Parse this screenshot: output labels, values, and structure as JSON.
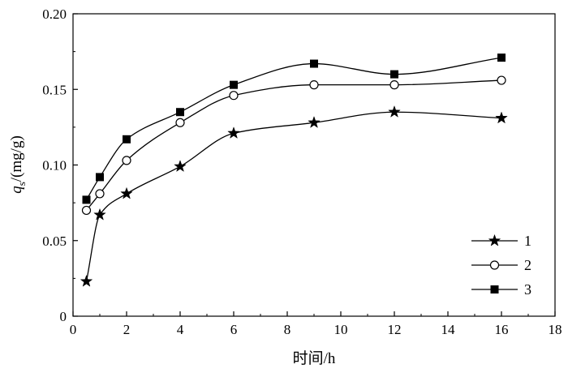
{
  "chart_data": {
    "type": "line",
    "title": "",
    "xlabel": "时间/h",
    "ylabel": {
      "symbol": "q",
      "subscript": "s",
      "unit": "/(mg/g)"
    },
    "xlim": [
      0,
      18
    ],
    "ylim": [
      0,
      0.2
    ],
    "xticks": [
      "0",
      "2",
      "4",
      "6",
      "8",
      "10",
      "12",
      "14",
      "16",
      "18"
    ],
    "yticks": [
      "0",
      "0.05",
      "0.10",
      "0.15",
      "0.20"
    ],
    "grid": false,
    "legend_position": "bottom-right",
    "x": [
      0.5,
      1,
      2,
      4,
      6,
      9,
      12,
      16
    ],
    "series": [
      {
        "name": "1",
        "marker": "star",
        "values": [
          0.023,
          0.067,
          0.081,
          0.099,
          0.121,
          0.128,
          0.135,
          0.131
        ]
      },
      {
        "name": "2",
        "marker": "circle-open",
        "values": [
          0.07,
          0.081,
          0.103,
          0.128,
          0.146,
          0.153,
          0.153,
          0.156
        ]
      },
      {
        "name": "3",
        "marker": "square-filled",
        "values": [
          0.077,
          0.092,
          0.117,
          0.135,
          0.153,
          0.167,
          0.16,
          0.171
        ]
      }
    ]
  }
}
